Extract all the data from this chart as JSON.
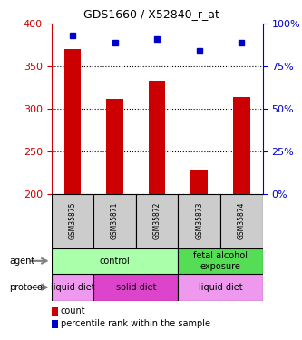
{
  "title": "GDS1660 / X52840_r_at",
  "samples": [
    "GSM35875",
    "GSM35871",
    "GSM35872",
    "GSM35873",
    "GSM35874"
  ],
  "counts": [
    370,
    312,
    333,
    227,
    314
  ],
  "percentiles": [
    93,
    89,
    91,
    84,
    89
  ],
  "ylim_left": [
    200,
    400
  ],
  "ylim_right": [
    0,
    100
  ],
  "yticks_left": [
    200,
    250,
    300,
    350,
    400
  ],
  "yticks_right": [
    0,
    25,
    50,
    75,
    100
  ],
  "bar_color": "#cc0000",
  "dot_color": "#0000cc",
  "agent_groups": [
    {
      "label": "control",
      "span": [
        0,
        3
      ],
      "color": "#aaffaa"
    },
    {
      "label": "fetal alcohol\nexposure",
      "span": [
        3,
        5
      ],
      "color": "#55dd55"
    }
  ],
  "protocol_groups": [
    {
      "label": "liquid diet",
      "span": [
        0,
        1
      ],
      "color": "#ee99ee"
    },
    {
      "label": "solid diet",
      "span": [
        1,
        3
      ],
      "color": "#dd44cc"
    },
    {
      "label": "liquid diet",
      "span": [
        3,
        5
      ],
      "color": "#ee99ee"
    }
  ],
  "left_axis_color": "#cc0000",
  "right_axis_color": "#0000cc",
  "sample_box_color": "#cccccc",
  "background_color": "#ffffff",
  "fig_width": 3.33,
  "fig_height": 3.75,
  "dpi": 100
}
